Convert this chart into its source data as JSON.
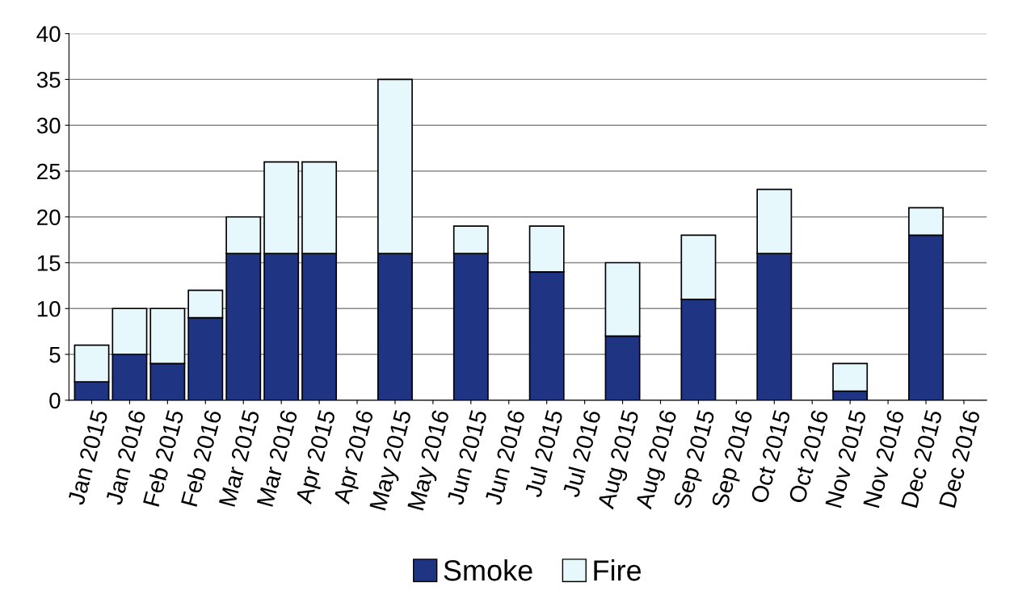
{
  "chart_data": {
    "type": "bar",
    "stacked": true,
    "categories": [
      "Jan 2015",
      "Jan 2016",
      "Feb 2015",
      "Feb 2016",
      "Mar 2015",
      "Mar 2016",
      "Apr 2015",
      "Apr 2016",
      "May 2015",
      "May 2016",
      "Jun 2015",
      "Jun 2016",
      "Jul 2015",
      "Jul 2016",
      "Aug 2015",
      "Aug 2016",
      "Sep 2015",
      "Sep 2016",
      "Oct 2015",
      "Oct 2016",
      "Nov 2015",
      "Nov 2016",
      "Dec 2015",
      "Dec 2016"
    ],
    "series": [
      {
        "name": "Smoke",
        "color": "#1f3483",
        "values": [
          2,
          5,
          4,
          9,
          16,
          16,
          16,
          null,
          16,
          null,
          16,
          null,
          14,
          null,
          7,
          null,
          11,
          null,
          16,
          null,
          1,
          null,
          18,
          null
        ]
      },
      {
        "name": "Fire",
        "color": "#e6f8fc",
        "values": [
          4,
          5,
          6,
          3,
          4,
          10,
          10,
          null,
          19,
          null,
          3,
          null,
          5,
          null,
          8,
          null,
          7,
          null,
          7,
          null,
          3,
          null,
          3,
          null
        ]
      }
    ],
    "ylim": [
      0,
      40
    ],
    "yticks": [
      0,
      5,
      10,
      15,
      20,
      25,
      30,
      35,
      40
    ],
    "grid": "y",
    "legend": "bottom"
  }
}
